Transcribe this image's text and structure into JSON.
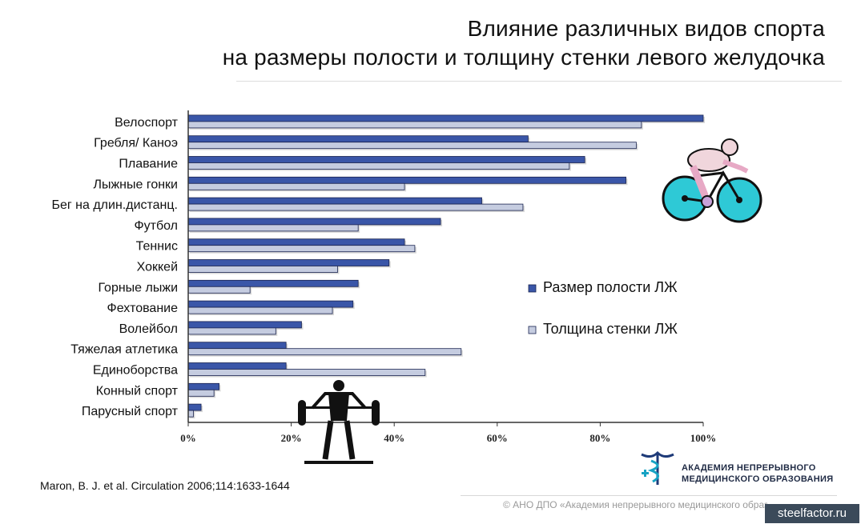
{
  "header": {
    "title_line1": "Влияние различных видов спорта",
    "title_line2": "на размеры полости и толщину стенки левого желудочка"
  },
  "chart_data": {
    "type": "bar",
    "orientation": "horizontal",
    "categories": [
      "Велоспорт",
      "Гребля/ Каноэ",
      "Плавание",
      "Лыжные гонки",
      "Бег на длин.дистанц.",
      "Футбол",
      "Теннис",
      "Хоккей",
      "Горные лыжи",
      "Фехтование",
      "Волейбол",
      "Тяжелая атлетика",
      "Единоборства",
      "Конный спорт",
      "Парусный спорт"
    ],
    "series": [
      {
        "name": "Размер полости ЛЖ",
        "values": [
          100,
          66,
          77,
          85,
          57,
          49,
          42,
          39,
          33,
          32,
          22,
          19,
          19,
          6,
          2.5
        ],
        "color": "#3a56a8"
      },
      {
        "name": "Толщина стенки ЛЖ",
        "values": [
          88,
          87,
          74,
          42,
          65,
          33,
          44,
          29,
          12,
          28,
          17,
          53,
          46,
          5,
          1
        ],
        "color": "#c5cce0"
      }
    ],
    "xlim": [
      0,
      100
    ],
    "x_ticks": [
      "0%",
      "20%",
      "40%",
      "60%",
      "80%",
      "100%"
    ],
    "legend_position": "right",
    "grid": false
  },
  "footer": {
    "source": "Maron,  B. J. et al. Circulation 2006;114:1633-1644",
    "logo_line1": "АКАДЕМИЯ НЕПРЕРЫВНОГО",
    "logo_line2": "МЕДИЦИНСКОГО ОБРАЗОВАНИЯ",
    "copyright": "© АНО ДПО «Академия непрерывного медицинского образования»",
    "watermark": "steelfactor.ru"
  },
  "colors": {
    "series1": "#3a56a8",
    "series2": "#c5cce0",
    "axis": "#333333"
  },
  "icons": [
    "cyclist-icon",
    "weightlifter-icon",
    "caduceus-logo-icon"
  ]
}
